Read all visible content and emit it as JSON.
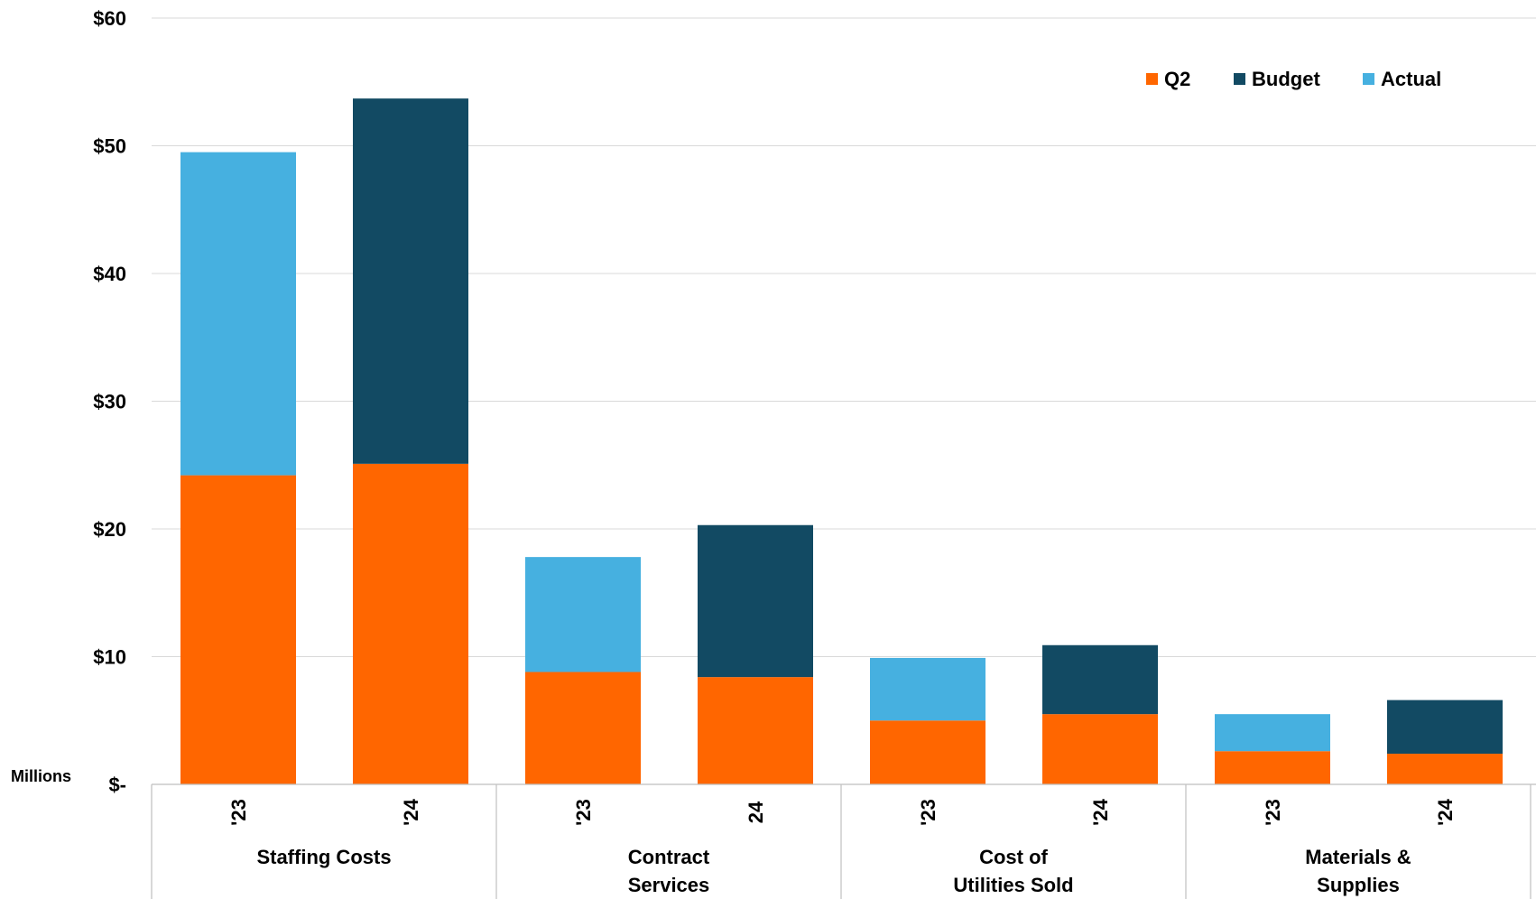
{
  "chart_data": {
    "type": "bar",
    "stacked": true,
    "unit_label": "Millions",
    "y_tick_labels": [
      "$-",
      "$10",
      "$20",
      "$30",
      "$40",
      "$50",
      "$60"
    ],
    "ylim": [
      0,
      60
    ],
    "grid": true,
    "legend_position": "top-right",
    "legend": [
      {
        "name": "Q2",
        "color": "#FF6600"
      },
      {
        "name": "Budget",
        "color": "#124A63"
      },
      {
        "name": "Actual",
        "color": "#46B0E0"
      }
    ],
    "groups": [
      {
        "label": "Staffing Costs",
        "bars": [
          {
            "label": "'23",
            "q2": 24.2,
            "top": 25.3,
            "top_series": "Actual"
          },
          {
            "label": "'24",
            "q2": 25.1,
            "top": 28.6,
            "top_series": "Budget"
          }
        ]
      },
      {
        "label": "Contract Services",
        "bars": [
          {
            "label": "'23",
            "q2": 8.8,
            "top": 9.0,
            "top_series": "Actual"
          },
          {
            "label": "24",
            "q2": 8.4,
            "top": 11.9,
            "top_series": "Budget"
          }
        ]
      },
      {
        "label": "Cost of Utilities Sold",
        "bars": [
          {
            "label": "'23",
            "q2": 5.0,
            "top": 4.9,
            "top_series": "Actual"
          },
          {
            "label": "'24",
            "q2": 5.5,
            "top": 5.4,
            "top_series": "Budget"
          }
        ]
      },
      {
        "label": "Materials & Supplies",
        "bars": [
          {
            "label": "'23",
            "q2": 2.6,
            "top": 2.9,
            "top_series": "Actual"
          },
          {
            "label": "'24",
            "q2": 2.4,
            "top": 4.2,
            "top_series": "Budget"
          }
        ]
      }
    ]
  }
}
